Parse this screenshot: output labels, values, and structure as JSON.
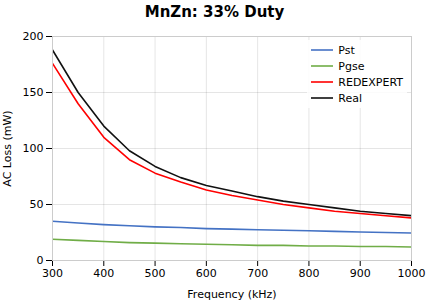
{
  "chart_data": {
    "type": "line",
    "title": "MnZn: 33% Duty",
    "xlabel": "Frequency (kHz)",
    "ylabel": "AC Loss (mW)",
    "x": [
      300,
      350,
      400,
      450,
      500,
      550,
      600,
      650,
      700,
      750,
      800,
      850,
      900,
      950,
      1000
    ],
    "series": [
      {
        "name": "Pst",
        "color": "#4472C4",
        "values": [
          35.0,
          33.5,
          32.0,
          31.0,
          30.0,
          29.5,
          28.5,
          28.0,
          27.5,
          27.0,
          26.5,
          26.0,
          25.5,
          25.0,
          24.5
        ]
      },
      {
        "name": "Pgse",
        "color": "#70AD47",
        "values": [
          19.0,
          18.0,
          17.0,
          16.0,
          15.5,
          15.0,
          14.5,
          14.0,
          13.5,
          13.5,
          13.0,
          13.0,
          12.5,
          12.5,
          12.0
        ]
      },
      {
        "name": "REDEXPERT",
        "color": "#FF0000",
        "values": [
          176,
          140,
          110,
          90,
          78,
          70,
          63,
          58,
          54,
          50,
          47,
          44,
          42,
          40,
          38
        ]
      },
      {
        "name": "Real",
        "color": "#111111",
        "values": [
          188,
          150,
          120,
          98,
          84,
          74,
          67,
          62,
          57,
          53,
          50,
          47,
          44,
          42,
          40
        ]
      }
    ],
    "xlim": [
      300,
      1000
    ],
    "ylim": [
      0,
      200
    ],
    "xticks": [
      300,
      400,
      500,
      600,
      700,
      800,
      900,
      1000
    ],
    "yticks": [
      0,
      50,
      100,
      150,
      200
    ],
    "grid": true,
    "legend": "upper right"
  }
}
